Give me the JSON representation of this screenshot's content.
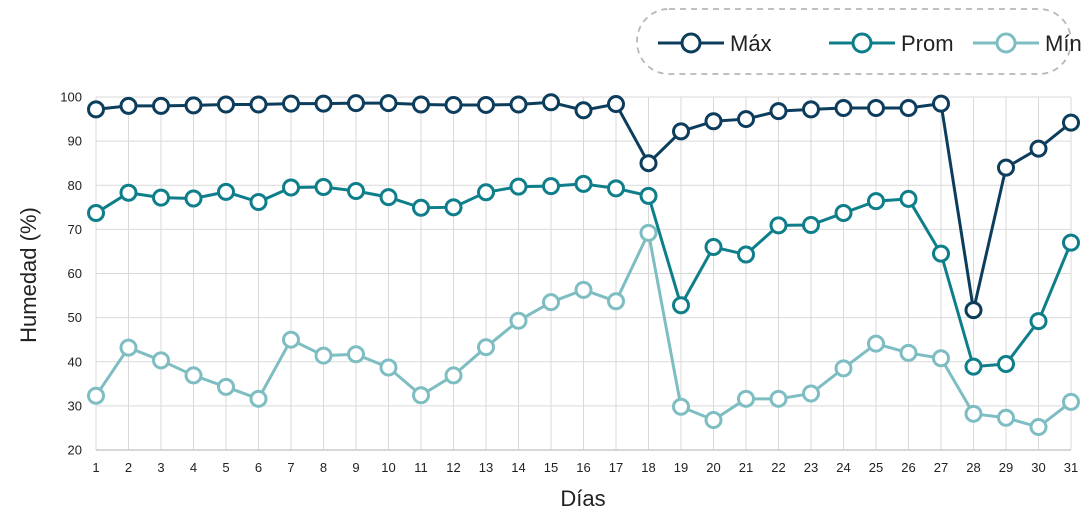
{
  "chart_data": {
    "type": "line",
    "title": "",
    "xlabel": "Días",
    "ylabel": "Humedad (%)",
    "x": [
      "1",
      "2",
      "3",
      "4",
      "5",
      "6",
      "7",
      "8",
      "9",
      "10",
      "11",
      "12",
      "13",
      "14",
      "15",
      "16",
      "17",
      "18",
      "19",
      "20",
      "21",
      "22",
      "23",
      "24",
      "25",
      "26",
      "27",
      "28",
      "29",
      "30",
      "31"
    ],
    "ylim": [
      20,
      100
    ],
    "yticks": [
      20,
      30,
      40,
      50,
      60,
      70,
      80,
      90,
      100
    ],
    "grid": true,
    "legend_position": "top-right",
    "series": [
      {
        "name": "Máx",
        "color": "#0d3d5c",
        "values": [
          97.2,
          98.0,
          98.0,
          98.1,
          98.3,
          98.3,
          98.5,
          98.5,
          98.6,
          98.6,
          98.3,
          98.2,
          98.2,
          98.3,
          98.8,
          97.0,
          98.4,
          85.0,
          92.2,
          94.5,
          95.0,
          96.8,
          97.2,
          97.5,
          97.5,
          97.5,
          98.5,
          51.7,
          84.0,
          88.3,
          94.2
        ]
      },
      {
        "name": "Prom",
        "color": "#0e7f8a",
        "values": [
          73.7,
          78.3,
          77.2,
          77.0,
          78.5,
          76.2,
          79.5,
          79.6,
          78.7,
          77.3,
          74.9,
          75.0,
          78.4,
          79.7,
          79.8,
          80.3,
          79.3,
          77.6,
          52.8,
          66.0,
          64.3,
          70.9,
          71.0,
          73.7,
          76.4,
          76.9,
          64.5,
          38.9,
          39.5,
          49.2,
          67.0
        ]
      },
      {
        "name": "Mín",
        "color": "#7ebdc2",
        "values": [
          32.3,
          43.2,
          40.3,
          36.9,
          34.3,
          31.6,
          45.0,
          41.4,
          41.7,
          38.7,
          32.4,
          36.9,
          43.3,
          49.3,
          53.5,
          56.3,
          53.7,
          69.2,
          29.8,
          26.8,
          31.6,
          31.6,
          32.8,
          38.5,
          44.1,
          42.0,
          40.8,
          28.2,
          27.3,
          25.2,
          30.9
        ]
      }
    ]
  }
}
